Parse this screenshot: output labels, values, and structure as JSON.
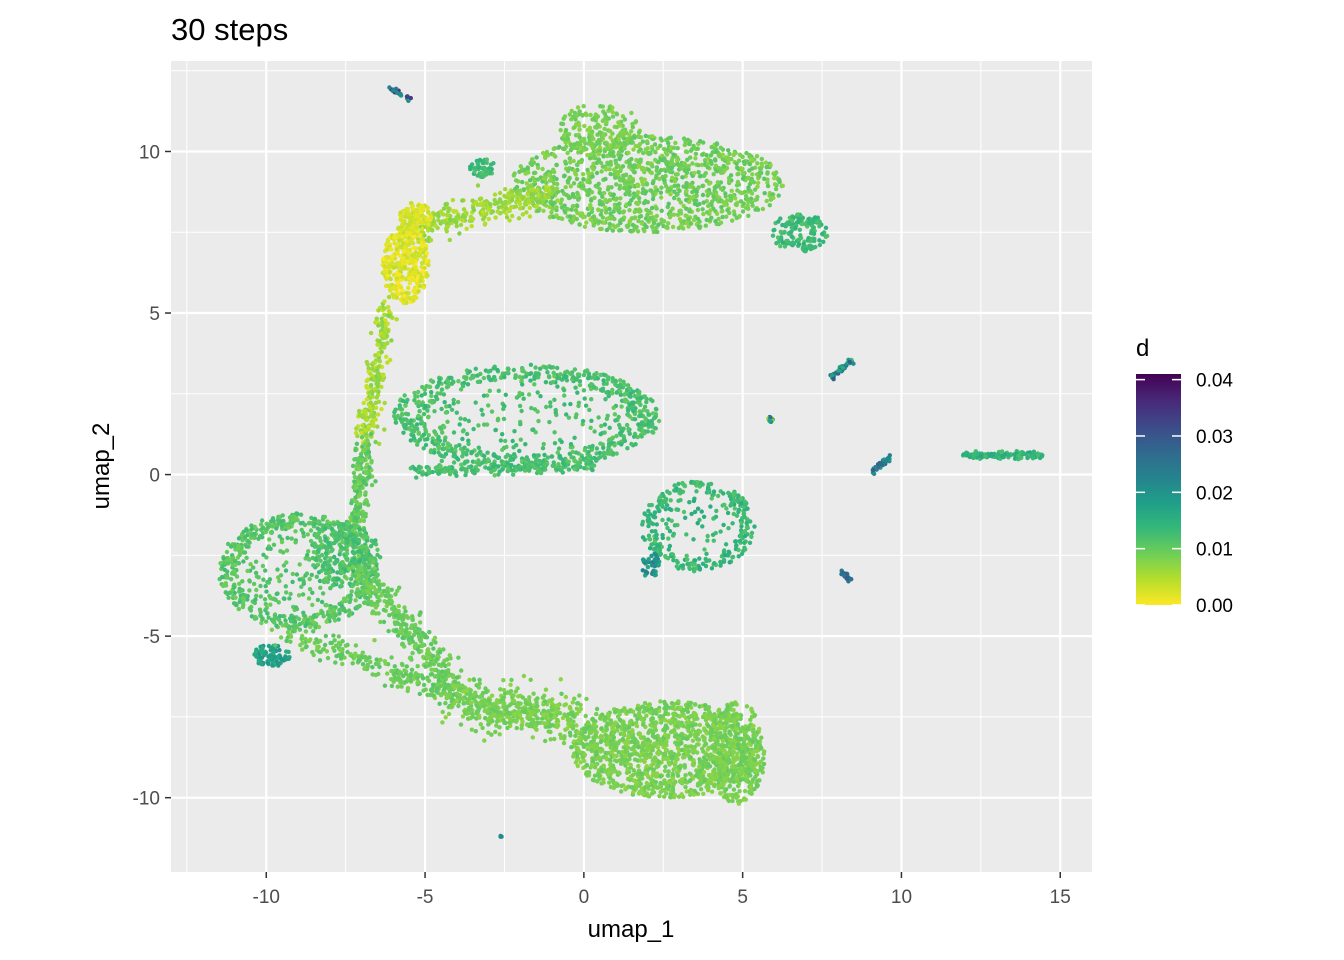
{
  "chart_data": {
    "type": "scatter",
    "title": "30 steps",
    "xlabel": "umap_1",
    "ylabel": "umap_2",
    "xlim": [
      -13.0,
      16.0
    ],
    "ylim": [
      -12.3,
      12.8
    ],
    "x_ticks": [
      -10,
      -5,
      0,
      5,
      10,
      15
    ],
    "x_tick_labels": [
      "-10",
      "-5",
      "0",
      "5",
      "10",
      "15"
    ],
    "y_ticks": [
      -10,
      -5,
      0,
      5,
      10
    ],
    "y_tick_labels": [
      "-10",
      "-5",
      "0",
      "5",
      "10"
    ],
    "grid": true,
    "background": "#ebebeb",
    "color_scale": {
      "name": "d",
      "palette": "viridis (reversed)",
      "min": 0.0,
      "max": 0.041,
      "ticks": [
        0.0,
        0.01,
        0.02,
        0.03,
        0.04
      ],
      "tick_labels": [
        "0.00",
        "0.01",
        "0.02",
        "0.03",
        "0.04"
      ],
      "colors": [
        "#fde725",
        "#b5de2b",
        "#6ece58",
        "#35b779",
        "#1f9e89",
        "#26828e",
        "#31688e",
        "#3e4989",
        "#482878",
        "#440154"
      ],
      "legend_position": "right"
    },
    "clusters": [
      {
        "label": "upper-main-cloud",
        "shape": "ellipse",
        "cx": 2.0,
        "cy": 9.0,
        "rx": 4.3,
        "ry": 1.5,
        "n": 1200,
        "d": [
          0.007,
          0.011
        ]
      },
      {
        "label": "upper-peak",
        "shape": "ellipse",
        "cx": 0.5,
        "cy": 10.7,
        "rx": 1.3,
        "ry": 0.8,
        "n": 180,
        "d": [
          0.007,
          0.01
        ]
      },
      {
        "label": "upper-right-tail",
        "shape": "ellipse",
        "cx": 6.8,
        "cy": 7.5,
        "rx": 0.9,
        "ry": 0.6,
        "n": 150,
        "d": [
          0.011,
          0.015
        ]
      },
      {
        "label": "upper-bridge",
        "shape": "segment",
        "from": [
          -5.5,
          7.6
        ],
        "to": [
          -1.0,
          8.7
        ],
        "width": 0.45,
        "n": 300,
        "d": [
          0.004,
          0.008
        ]
      },
      {
        "label": "yellow-region",
        "shape": "ellipse",
        "cx": -5.6,
        "cy": 6.5,
        "rx": 0.75,
        "ry": 1.2,
        "n": 340,
        "d": [
          0.0,
          0.004
        ]
      },
      {
        "label": "yellow-top",
        "shape": "ellipse",
        "cx": -5.3,
        "cy": 8.0,
        "rx": 0.5,
        "ry": 0.45,
        "n": 90,
        "d": [
          0.001,
          0.004
        ]
      },
      {
        "label": "left-arc",
        "shape": "segment",
        "from": [
          -6.2,
          5.2
        ],
        "to": [
          -6.9,
          1.0
        ],
        "width": 0.35,
        "n": 220,
        "d": [
          0.003,
          0.008
        ]
      },
      {
        "label": "left-stem",
        "shape": "segment",
        "from": [
          -6.9,
          1.0
        ],
        "to": [
          -7.2,
          -2.0
        ],
        "width": 0.3,
        "n": 180,
        "d": [
          0.008,
          0.012
        ]
      },
      {
        "label": "small-blob-upper",
        "shape": "ellipse",
        "cx": -3.2,
        "cy": 9.5,
        "rx": 0.4,
        "ry": 0.3,
        "n": 50,
        "d": [
          0.011,
          0.015
        ]
      },
      {
        "label": "top-speck",
        "shape": "segment",
        "from": [
          -6.2,
          12.0
        ],
        "to": [
          -5.4,
          11.6
        ],
        "width": 0.06,
        "n": 30,
        "d": [
          0.015,
          0.035
        ]
      },
      {
        "label": "middle-ring",
        "shape": "ring",
        "cx": -1.8,
        "cy": 1.8,
        "rx": 4.2,
        "ry": 1.6,
        "n": 800,
        "d": [
          0.01,
          0.014
        ]
      },
      {
        "label": "middle-ring-edge",
        "shape": "segment",
        "from": [
          -5.3,
          0.1
        ],
        "to": [
          0.3,
          0.3
        ],
        "width": 0.2,
        "n": 200,
        "d": [
          0.01,
          0.014
        ]
      },
      {
        "label": "small-ring",
        "shape": "ring",
        "cx": 3.6,
        "cy": -1.6,
        "rx": 1.8,
        "ry": 1.4,
        "n": 320,
        "d": [
          0.011,
          0.016
        ]
      },
      {
        "label": "small-ring-tail",
        "shape": "ellipse",
        "cx": 2.1,
        "cy": -2.8,
        "rx": 0.3,
        "ry": 0.4,
        "n": 40,
        "d": [
          0.016,
          0.024
        ]
      },
      {
        "label": "left-loop",
        "shape": "ring",
        "cx": -9.0,
        "cy": -3.0,
        "rx": 2.5,
        "ry": 1.8,
        "n": 650,
        "d": [
          0.009,
          0.013
        ]
      },
      {
        "label": "loop-inner",
        "shape": "ellipse",
        "cx": -7.6,
        "cy": -2.5,
        "rx": 1.2,
        "ry": 1.0,
        "n": 260,
        "d": [
          0.01,
          0.014
        ]
      },
      {
        "label": "loop-bottom",
        "shape": "ellipse",
        "cx": -9.8,
        "cy": -5.6,
        "rx": 0.6,
        "ry": 0.35,
        "n": 90,
        "d": [
          0.015,
          0.02
        ]
      },
      {
        "label": "lower-bridge-1",
        "shape": "segment",
        "from": [
          -7.0,
          -3.0
        ],
        "to": [
          -4.0,
          -6.8
        ],
        "width": 0.5,
        "n": 350,
        "d": [
          0.008,
          0.011
        ]
      },
      {
        "label": "lower-bridge-2",
        "shape": "segment",
        "from": [
          -9.5,
          -4.8
        ],
        "to": [
          -3.0,
          -7.2
        ],
        "width": 0.4,
        "n": 280,
        "d": [
          0.008,
          0.011
        ]
      },
      {
        "label": "lower-bridge-3",
        "shape": "segment",
        "from": [
          -4.0,
          -7.0
        ],
        "to": [
          0.0,
          -7.6
        ],
        "width": 0.7,
        "n": 400,
        "d": [
          0.007,
          0.01
        ]
      },
      {
        "label": "lower-main-cloud",
        "shape": "ellipse",
        "cx": 2.6,
        "cy": -8.5,
        "rx": 3.0,
        "ry": 1.5,
        "n": 1300,
        "d": [
          0.007,
          0.01
        ]
      },
      {
        "label": "lower-right-end",
        "shape": "ellipse",
        "cx": 4.8,
        "cy": -8.6,
        "rx": 0.9,
        "ry": 1.6,
        "n": 350,
        "d": [
          0.007,
          0.01
        ]
      },
      {
        "label": "isolated-1",
        "shape": "segment",
        "from": [
          7.8,
          3.0
        ],
        "to": [
          8.5,
          3.6
        ],
        "width": 0.08,
        "n": 45,
        "d": [
          0.013,
          0.03
        ]
      },
      {
        "label": "isolated-2",
        "shape": "ellipse",
        "cx": 5.85,
        "cy": 1.7,
        "rx": 0.1,
        "ry": 0.08,
        "n": 14,
        "d": [
          0.0,
          0.035
        ]
      },
      {
        "label": "isolated-3",
        "shape": "segment",
        "from": [
          9.1,
          0.1
        ],
        "to": [
          9.6,
          0.5
        ],
        "width": 0.08,
        "n": 40,
        "d": [
          0.018,
          0.03
        ]
      },
      {
        "label": "isolated-4",
        "shape": "segment",
        "from": [
          8.1,
          -3.0
        ],
        "to": [
          8.4,
          -3.3
        ],
        "width": 0.06,
        "n": 22,
        "d": [
          0.022,
          0.03
        ]
      },
      {
        "label": "right-streak",
        "shape": "segment",
        "from": [
          12.0,
          0.6
        ],
        "to": [
          14.4,
          0.6
        ],
        "width": 0.1,
        "n": 160,
        "d": [
          0.012,
          0.017
        ]
      },
      {
        "label": "lone-point",
        "shape": "ellipse",
        "cx": -2.6,
        "cy": -11.2,
        "rx": 0.03,
        "ry": 0.03,
        "n": 3,
        "d": [
          0.018,
          0.022
        ]
      }
    ]
  }
}
